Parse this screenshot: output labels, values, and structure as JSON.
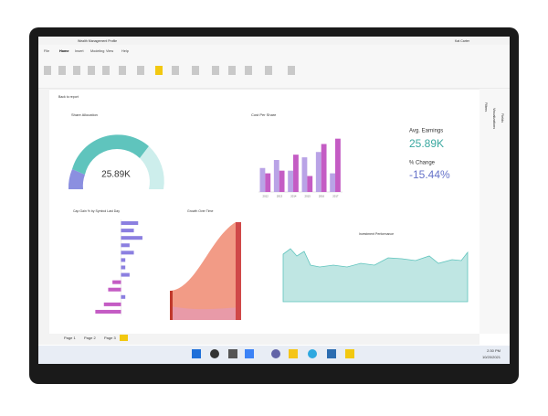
{
  "window": {
    "title": "Wealth Management Profile",
    "user": "Kat Carter"
  },
  "ribbon": {
    "tabs": [
      "File",
      "Home",
      "Insert",
      "Modeling",
      "View",
      "Help"
    ]
  },
  "toolbar": {
    "back": "Back to report"
  },
  "panes": [
    "Filters",
    "Visualizations",
    "Fields"
  ],
  "visuals": {
    "gauge": {
      "title": "Share Allocation",
      "value": "25.89K"
    },
    "cost": {
      "title": "Cost Per Share",
      "categories": [
        "2012",
        "2013",
        "2014",
        "2015",
        "2016",
        "2017"
      ],
      "series": [
        {
          "color": "#b9a3e6",
          "values": [
            45,
            60,
            40,
            65,
            75,
            35
          ]
        },
        {
          "color": "#c45cc4",
          "values": [
            35,
            40,
            70,
            30,
            90,
            100
          ]
        }
      ],
      "ylim": [
        0,
        120
      ]
    },
    "kpi": {
      "avg_label": "Avg. Earnings",
      "avg_value": "25.89K",
      "change_label": "% Change",
      "change_value": "-15.44%"
    },
    "capgain": {
      "title": "Cap Gain % by Symbol Last Day",
      "values": [
        4,
        3,
        5,
        2,
        3,
        1,
        1,
        2,
        -2,
        -3,
        1,
        -4,
        -6
      ],
      "colors": {
        "pos": "#8b7fe0",
        "neg": "#c45cc4"
      },
      "xlim": [
        -8,
        8
      ]
    },
    "growth": {
      "title": "Growth Over Time"
    },
    "investment": {
      "title": "Investment Performance"
    }
  },
  "pages": [
    "Page 1",
    "Page 2",
    "Page 3"
  ],
  "taskbar": {
    "time": "2:30 PM",
    "date": "10/20/2021"
  }
}
